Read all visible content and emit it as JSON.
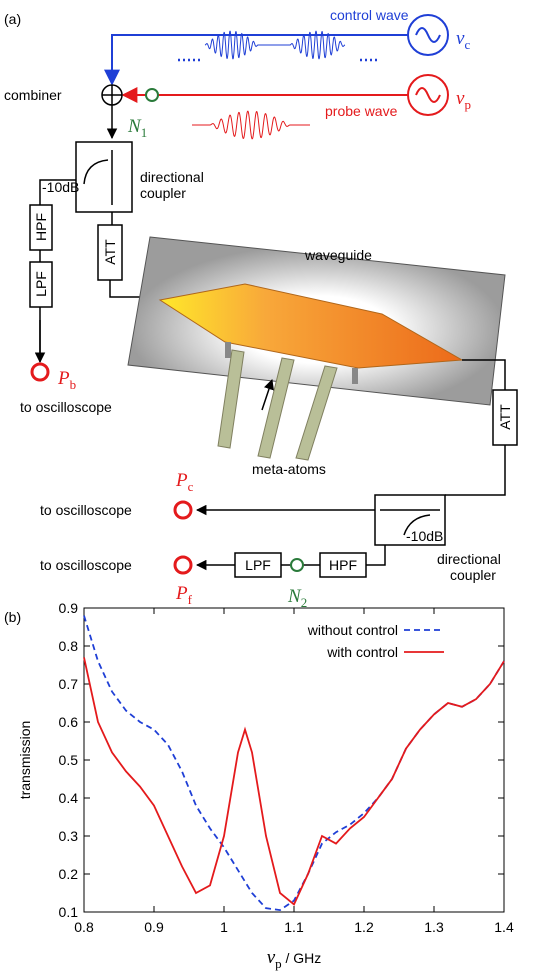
{
  "diagram": {
    "panel_a": "(a)",
    "panel_b": "(b)",
    "control_wave": "control wave",
    "nu_c": {
      "symbol": "ν",
      "sub": "c"
    },
    "probe_wave": "probe wave",
    "nu_p": {
      "symbol": "ν",
      "sub": "p"
    },
    "combiner": "combiner",
    "n1": {
      "symbol": "N",
      "sub": "1"
    },
    "coupler1": {
      "gain": "-10dB",
      "line1": "directional",
      "line2": "coupler"
    },
    "hpf1": "HPF",
    "lpf1": "LPF",
    "att1": "ATT",
    "pb": {
      "symbol": "P",
      "sub": "b"
    },
    "pb_target": "to oscilloscope",
    "waveguide": "waveguide",
    "meta_atoms": "meta-atoms",
    "att2": "ATT",
    "pc": {
      "symbol": "P",
      "sub": "c"
    },
    "pc_target": "to oscilloscope",
    "coupler2": {
      "gain": "-10dB",
      "line1": "directional",
      "line2": "coupler"
    },
    "pf": {
      "symbol": "P",
      "sub": "f"
    },
    "pf_target": "to oscilloscope",
    "lpf2": "LPF",
    "hpf2": "HPF",
    "n2": {
      "symbol": "N",
      "sub": "2"
    }
  },
  "chart_data": {
    "type": "line",
    "xlabel": {
      "symbol": "ν",
      "sub": "p",
      "unit": " / GHz"
    },
    "ylabel": "transmission",
    "xlim": [
      0.8,
      1.4
    ],
    "ylim": [
      0.1,
      0.9
    ],
    "xticks": [
      0.8,
      0.9,
      1,
      1.1,
      1.2,
      1.3,
      1.4
    ],
    "yticks": [
      0.1,
      0.2,
      0.3,
      0.4,
      0.5,
      0.6,
      0.7,
      0.8,
      0.9
    ],
    "legend": "top-right",
    "x": [
      0.8,
      0.82,
      0.84,
      0.86,
      0.88,
      0.9,
      0.92,
      0.94,
      0.96,
      0.98,
      1.0,
      1.02,
      1.03,
      1.04,
      1.06,
      1.08,
      1.1,
      1.12,
      1.14,
      1.16,
      1.18,
      1.2,
      1.22,
      1.24,
      1.26,
      1.28,
      1.3,
      1.32,
      1.34,
      1.36,
      1.38,
      1.4
    ],
    "series": [
      {
        "name": "without control",
        "color": "#1f3fd6",
        "dash": true,
        "values": [
          0.88,
          0.76,
          0.68,
          0.63,
          0.6,
          0.58,
          0.54,
          0.47,
          0.38,
          0.32,
          0.27,
          0.21,
          0.18,
          0.15,
          0.11,
          0.105,
          0.13,
          0.2,
          0.28,
          0.31,
          0.33,
          0.36,
          0.4,
          0.45,
          0.53,
          0.58,
          0.62,
          0.65,
          0.64,
          0.66,
          0.7,
          0.76
        ]
      },
      {
        "name": "with control",
        "color": "#e41a1c",
        "dash": false,
        "values": [
          0.77,
          0.6,
          0.52,
          0.47,
          0.43,
          0.38,
          0.3,
          0.22,
          0.15,
          0.17,
          0.3,
          0.52,
          0.58,
          0.52,
          0.3,
          0.15,
          0.12,
          0.2,
          0.3,
          0.28,
          0.32,
          0.35,
          0.4,
          0.45,
          0.53,
          0.58,
          0.62,
          0.65,
          0.64,
          0.66,
          0.7,
          0.76
        ]
      }
    ]
  }
}
